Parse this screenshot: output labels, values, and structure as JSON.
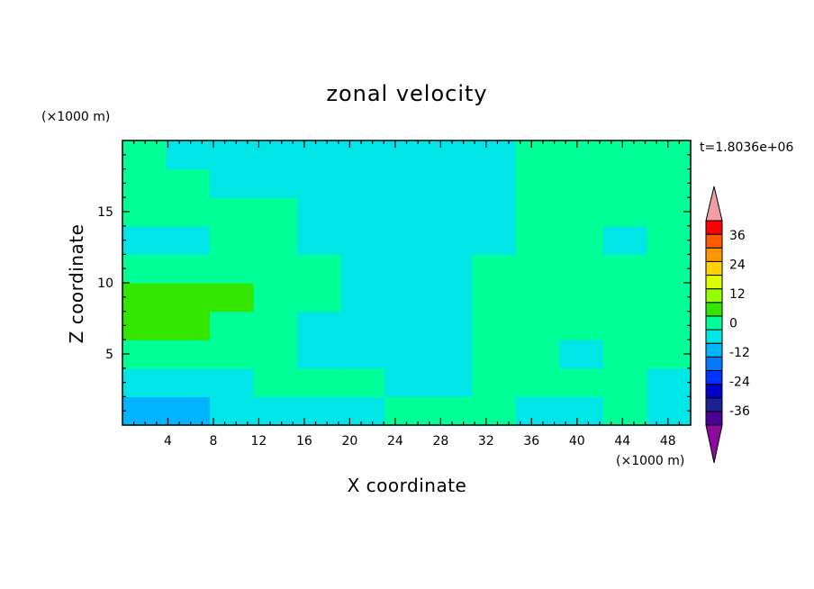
{
  "chart_data": {
    "type": "heatmap",
    "title": "zonal velocity",
    "xlabel": "X coordinate",
    "ylabel": "Z coordinate",
    "x_unit": "(×1000 m)",
    "y_unit": "(×1000 m)",
    "time_label": "t=1.8036e+06",
    "xlim": [
      0,
      50
    ],
    "ylim": [
      0,
      20
    ],
    "x_ticks": [
      4,
      8,
      12,
      16,
      20,
      24,
      28,
      32,
      36,
      40,
      44,
      48
    ],
    "y_ticks": [
      5,
      10,
      15
    ],
    "colorbar": {
      "levels": [
        -42,
        -36,
        -30,
        -24,
        -18,
        -12,
        -6,
        0,
        6,
        12,
        18,
        24,
        30,
        36,
        42
      ],
      "colors": [
        "#4b0096",
        "#1e1e96",
        "#0000c8",
        "#0032ff",
        "#0078ff",
        "#00b4ff",
        "#00e6e6",
        "#00ff96",
        "#32e600",
        "#96ff00",
        "#dcff00",
        "#ffd200",
        "#ff9600",
        "#ff5a00",
        "#ff0000"
      ],
      "under_color": "#8c0aa0",
      "over_color": "#f0a0a0",
      "tick_labels": [
        "36",
        "24",
        "12",
        "0",
        "-12",
        "-24",
        "-36"
      ],
      "tick_values": [
        36,
        24,
        12,
        0,
        -12,
        -24,
        -36
      ]
    },
    "x_grid": [
      2,
      6,
      10,
      14,
      18,
      22,
      26,
      30,
      34,
      38,
      42,
      46,
      50
    ],
    "z_grid": [
      1,
      3,
      5,
      7,
      9,
      11,
      13,
      15,
      17,
      19
    ],
    "values": [
      [
        -8,
        -7,
        -6,
        -4,
        -2,
        -1,
        1,
        5,
        4,
        -2,
        -1,
        0,
        -1
      ],
      [
        -4,
        -3,
        -2,
        0,
        0,
        0,
        -1,
        -1,
        0,
        0,
        1,
        0,
        -1
      ],
      [
        3,
        4,
        2,
        0,
        -1,
        -2,
        -3,
        -3,
        1,
        2,
        -4,
        1,
        2
      ],
      [
        6,
        7,
        5,
        1,
        -1,
        -2,
        -6,
        -5,
        1,
        2,
        0,
        3,
        4
      ],
      [
        7,
        8,
        6,
        2,
        0,
        -1,
        -3,
        -2,
        1,
        1,
        0,
        1,
        5
      ],
      [
        2,
        2,
        1,
        0,
        0,
        -1,
        -2,
        -2,
        0,
        1,
        1,
        0,
        0
      ],
      [
        -4,
        -3,
        1,
        1,
        -1,
        -2,
        -3,
        -2,
        -1,
        1,
        2,
        -1,
        0
      ],
      [
        2,
        2,
        1,
        1,
        -1,
        -2,
        -2,
        -1,
        -1,
        0,
        1,
        0,
        0
      ],
      [
        1,
        0,
        -1,
        -2,
        -2,
        -2,
        -2,
        -2,
        -1,
        1,
        1,
        1,
        0
      ],
      [
        1,
        -1,
        -2,
        -2,
        -2,
        -2,
        -2,
        -2,
        -1,
        1,
        1,
        1,
        1
      ]
    ]
  }
}
